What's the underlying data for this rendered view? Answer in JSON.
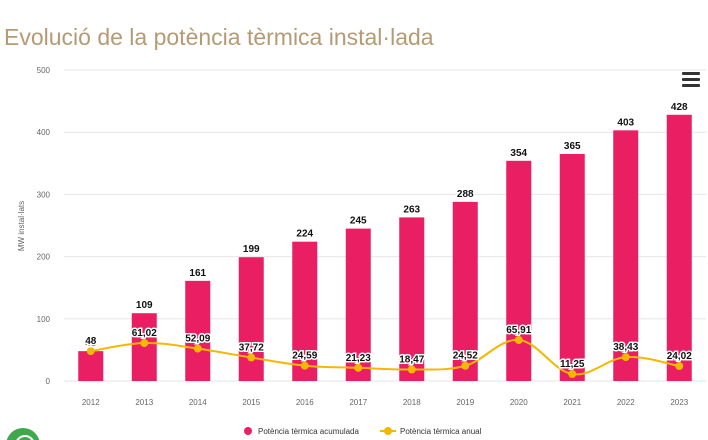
{
  "title": "Evolució de la potència tèrmica instal·lada",
  "colors": {
    "bar": "#e91e63",
    "line": "#f5b800",
    "title": "#b59a74"
  },
  "icons": {
    "menu": "hamburger-menu-icon",
    "badge": "green-badge-icon"
  },
  "chart_data": {
    "type": "bar",
    "categories": [
      "2012",
      "2013",
      "2014",
      "2015",
      "2016",
      "2017",
      "2018",
      "2019",
      "2020",
      "2021",
      "2022",
      "2023"
    ],
    "series": [
      {
        "name": "Potència tèrmica acumulada",
        "type": "bar",
        "values": [
          48,
          109,
          161,
          199,
          224,
          245,
          263,
          288,
          354,
          365,
          403,
          428
        ],
        "labels": [
          "48",
          "109",
          "161",
          "199",
          "224",
          "245",
          "263",
          "288",
          "354",
          "365",
          "403",
          "428"
        ]
      },
      {
        "name": "Potència tèrmica anual",
        "type": "line",
        "values": [
          48,
          61.02,
          52.09,
          37.72,
          24.59,
          21.23,
          18.47,
          24.52,
          65.91,
          11.25,
          38.43,
          24.02
        ],
        "labels": [
          "48",
          "61,02",
          "52,09",
          "37,72",
          "24,59",
          "21,23",
          "18,47",
          "24,52",
          "65,91",
          "11,25",
          "38,43",
          "24,02"
        ]
      }
    ],
    "ylabel": "MW instal·lats",
    "xlabel": "",
    "ylim": [
      0,
      500
    ],
    "yticks": [
      "0",
      "100",
      "200",
      "300",
      "400",
      "500"
    ],
    "grid": true,
    "legend": "bottom-center"
  }
}
